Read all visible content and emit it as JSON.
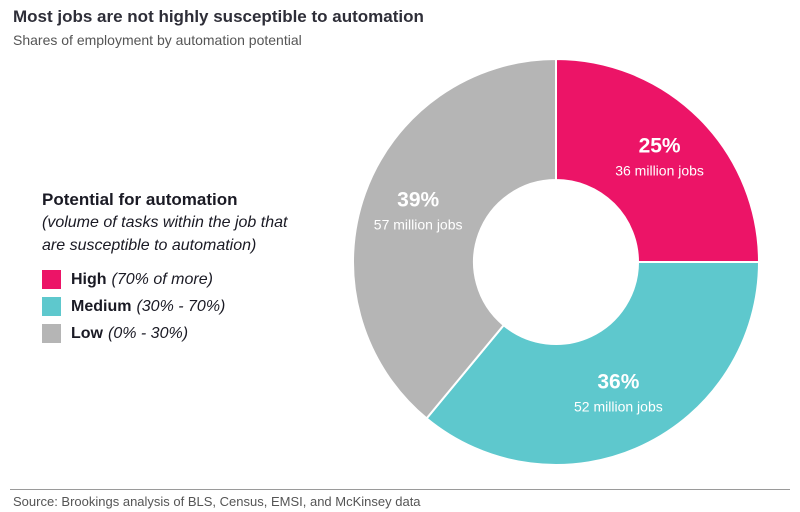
{
  "header": {
    "title": "Most jobs are not highly susceptible to automation",
    "subtitle": "Shares of employment by automation potential"
  },
  "legend": {
    "title": "Potential for automation",
    "description_line1": "(volume of tasks within the job that",
    "description_line2": "are susceptible to automation)",
    "items": [
      {
        "name": "High",
        "range": "(70% of more)",
        "color": "#ec1467"
      },
      {
        "name": "Medium",
        "range": "(30% - 70%)",
        "color": "#5ec8cd"
      },
      {
        "name": "Low",
        "range": "(0% - 30%)",
        "color": "#b5b5b5"
      }
    ]
  },
  "chart_data": {
    "type": "pie",
    "style": "donut",
    "title": "Most jobs are not highly susceptible to automation",
    "subtitle": "Shares of employment by automation potential",
    "categories": [
      "High",
      "Medium",
      "Low"
    ],
    "values": [
      25,
      36,
      39
    ],
    "unit": "%",
    "percent_labels": [
      "25%",
      "36%",
      "39%"
    ],
    "sub_labels": [
      "36 million jobs",
      "52 million jobs",
      "57 million jobs"
    ],
    "colors": [
      "#ec1467",
      "#5ec8cd",
      "#b5b5b5"
    ],
    "start": "12 o'clock, clockwise",
    "legend_position": "left"
  },
  "footer": {
    "source": "Source: Brookings analysis of BLS, Census, EMSI, and McKinsey data"
  }
}
